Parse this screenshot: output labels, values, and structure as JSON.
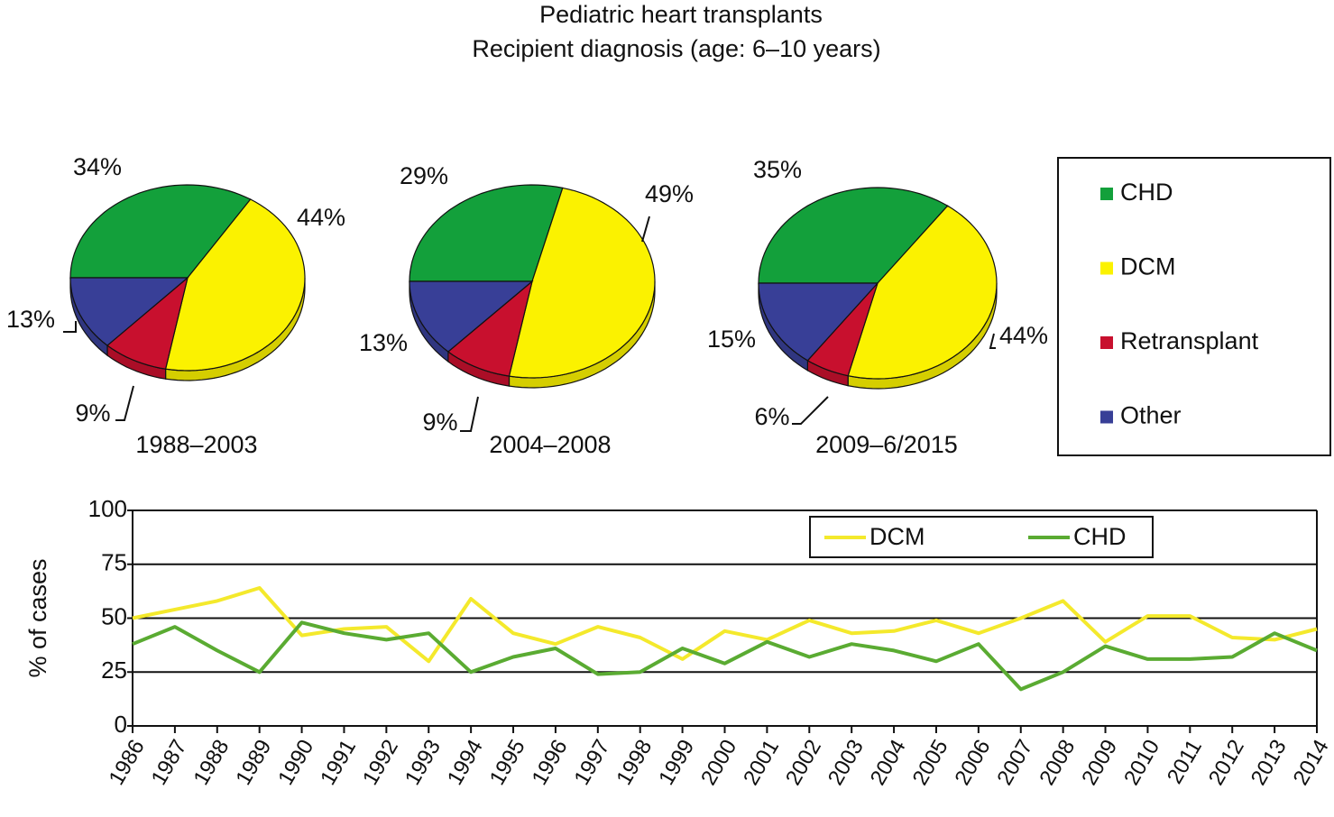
{
  "title": "Pediatric heart transplants",
  "subtitle": "Recipient diagnosis (age: 6–10 years)",
  "chart_data": [
    {
      "type": "pie",
      "label": "1988–2003",
      "categories": [
        "CHD",
        "DCM",
        "Retransplant",
        "Other"
      ],
      "values": [
        34,
        44,
        9,
        13
      ],
      "value_labels": [
        "34%",
        "44%",
        "9%",
        "13%"
      ],
      "colors": [
        "#13a03b",
        "#fbf200",
        "#c8102e",
        "#383f97"
      ]
    },
    {
      "type": "pie",
      "label": "2004–2008",
      "categories": [
        "CHD",
        "DCM",
        "Retransplant",
        "Other"
      ],
      "values": [
        29,
        49,
        9,
        13
      ],
      "value_labels": [
        "29%",
        "49%",
        "9%",
        "13%"
      ],
      "colors": [
        "#13a03b",
        "#fbf200",
        "#c8102e",
        "#383f97"
      ]
    },
    {
      "type": "pie",
      "label": "2009–6/2015",
      "categories": [
        "CHD",
        "DCM",
        "Retransplant",
        "Other"
      ],
      "values": [
        35,
        44,
        6,
        15
      ],
      "value_labels": [
        "35%",
        "44%",
        "6%",
        "15%"
      ],
      "colors": [
        "#13a03b",
        "#fbf200",
        "#c8102e",
        "#383f97"
      ]
    },
    {
      "type": "line",
      "ylabel": "% of cases",
      "categories": [
        "1986",
        "1987",
        "1988",
        "1989",
        "1990",
        "1991",
        "1992",
        "1993",
        "1994",
        "1995",
        "1996",
        "1997",
        "1998",
        "1999",
        "2000",
        "2001",
        "2002",
        "2003",
        "2004",
        "2005",
        "2006",
        "2007",
        "2008",
        "2009",
        "2010",
        "2011",
        "2012",
        "2013",
        "2014"
      ],
      "series": [
        {
          "name": "DCM",
          "color": "#f4e92c",
          "values": [
            50,
            54,
            58,
            64,
            42,
            45,
            46,
            30,
            59,
            43,
            38,
            46,
            41,
            31,
            44,
            40,
            49,
            43,
            44,
            49,
            43,
            50,
            58,
            39,
            51,
            51,
            41,
            40,
            45
          ]
        },
        {
          "name": "CHD",
          "color": "#5aab32",
          "values": [
            38,
            46,
            35,
            25,
            48,
            43,
            40,
            43,
            25,
            32,
            36,
            24,
            25,
            36,
            29,
            39,
            32,
            38,
            35,
            30,
            38,
            17,
            25,
            37,
            31,
            31,
            32,
            43,
            35
          ]
        }
      ],
      "ylim": [
        0,
        100
      ],
      "yticks": [
        0,
        25,
        50,
        75,
        100
      ],
      "grid": true
    }
  ]
}
